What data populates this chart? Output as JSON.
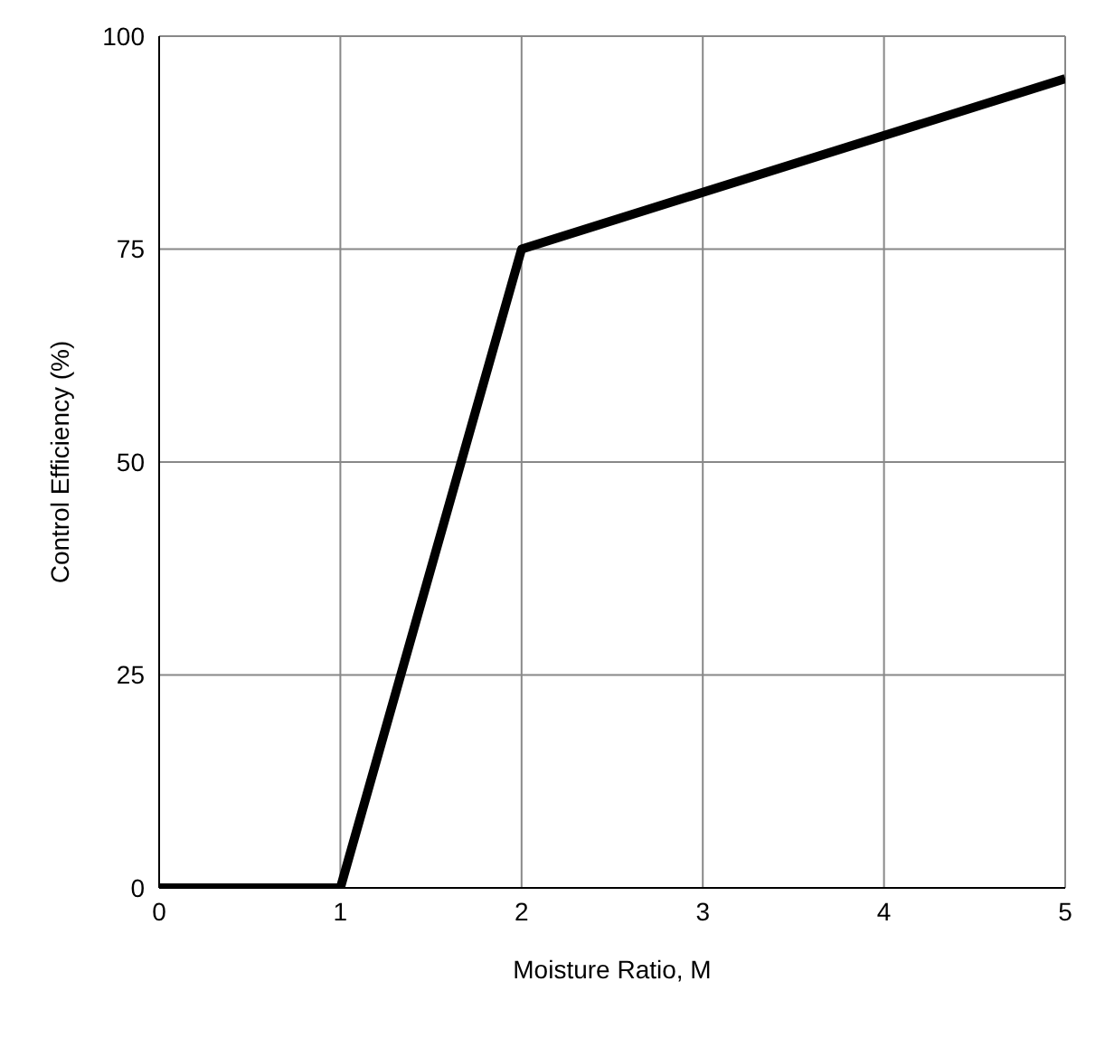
{
  "chart_data": {
    "type": "line",
    "xlabel": "Moisture Ratio, M",
    "ylabel": "Control Efficiency (%)",
    "x": [
      0,
      1,
      2,
      5
    ],
    "series": [
      {
        "color": "#000000",
        "values": [
          0,
          0,
          75,
          95
        ]
      }
    ],
    "xlim": [
      0,
      5
    ],
    "xticks": [
      0,
      1,
      2,
      3,
      4,
      5
    ],
    "ylim": [
      0,
      100
    ],
    "yticks": [
      0,
      25,
      50,
      75,
      100
    ],
    "grid": true,
    "marker": "none",
    "line_style": "solid"
  }
}
